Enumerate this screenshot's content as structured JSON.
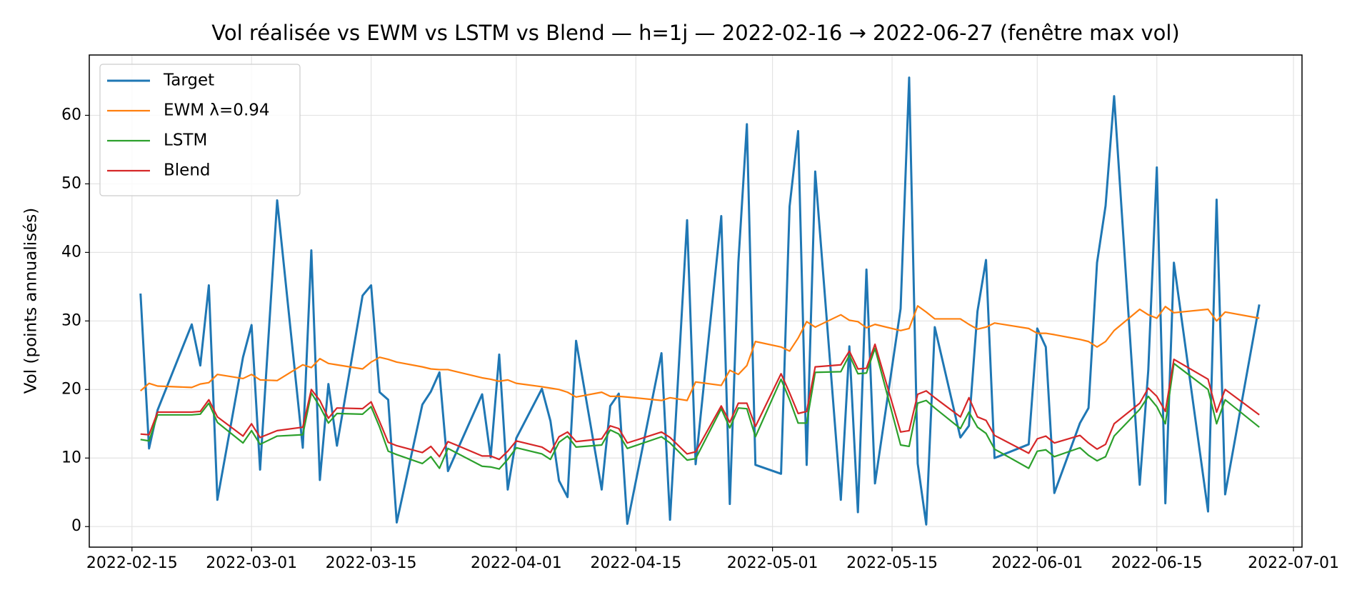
{
  "chart_data": {
    "type": "line",
    "title": "Vol réalisée vs EWM vs LSTM vs Blend — h=1j — 2022-02-16 → 2022-06-27 (fenêtre max vol)",
    "ylabel": "Vol (points annualisés)",
    "x": [
      "2022-02-16",
      "2022-02-17",
      "2022-02-18",
      "2022-02-22",
      "2022-02-23",
      "2022-02-24",
      "2022-02-25",
      "2022-02-28",
      "2022-03-01",
      "2022-03-02",
      "2022-03-04",
      "2022-03-07",
      "2022-03-08",
      "2022-03-09",
      "2022-03-10",
      "2022-03-11",
      "2022-03-14",
      "2022-03-15",
      "2022-03-16",
      "2022-03-17",
      "2022-03-18",
      "2022-03-21",
      "2022-03-22",
      "2022-03-23",
      "2022-03-24",
      "2022-03-28",
      "2022-03-29",
      "2022-03-30",
      "2022-03-31",
      "2022-04-01",
      "2022-04-04",
      "2022-04-05",
      "2022-04-06",
      "2022-04-07",
      "2022-04-08",
      "2022-04-11",
      "2022-04-12",
      "2022-04-13",
      "2022-04-14",
      "2022-04-18",
      "2022-04-19",
      "2022-04-21",
      "2022-04-22",
      "2022-04-25",
      "2022-04-26",
      "2022-04-27",
      "2022-04-28",
      "2022-04-29",
      "2022-05-02",
      "2022-05-03",
      "2022-05-04",
      "2022-05-05",
      "2022-05-06",
      "2022-05-09",
      "2022-05-10",
      "2022-05-11",
      "2022-05-12",
      "2022-05-13",
      "2022-05-16",
      "2022-05-17",
      "2022-05-18",
      "2022-05-19",
      "2022-05-20",
      "2022-05-23",
      "2022-05-24",
      "2022-05-25",
      "2022-05-26",
      "2022-05-27",
      "2022-05-31",
      "2022-06-01",
      "2022-06-02",
      "2022-06-03",
      "2022-06-06",
      "2022-06-07",
      "2022-06-08",
      "2022-06-09",
      "2022-06-10",
      "2022-06-13",
      "2022-06-14",
      "2022-06-15",
      "2022-06-16",
      "2022-06-17",
      "2022-06-21",
      "2022-06-22",
      "2022-06-23",
      "2022-06-27"
    ],
    "series": [
      {
        "name": "Target",
        "color": "#1f77b4",
        "values": [
          34.0,
          11.4,
          17.0,
          29.5,
          23.5,
          35.2,
          3.9,
          24.7,
          29.4,
          8.3,
          47.6,
          11.5,
          40.3,
          6.8,
          20.8,
          11.8,
          33.7,
          35.2,
          19.6,
          18.5,
          0.6,
          17.8,
          19.7,
          22.5,
          8.1,
          19.3,
          10.1,
          25.1,
          5.4,
          12.9,
          20.1,
          15.4,
          6.7,
          4.3,
          27.1,
          5.4,
          17.6,
          19.4,
          0.4,
          25.3,
          1.0,
          44.7,
          9.1,
          45.3,
          3.3,
          38.5,
          58.7,
          9.0,
          7.7,
          46.7,
          57.7,
          9.0,
          51.8,
          3.9,
          26.3,
          2.1,
          37.5,
          6.3,
          31.8,
          65.5,
          9.2,
          0.3,
          29.1,
          13.0,
          14.7,
          31.4,
          38.9,
          10.0,
          12.0,
          28.9,
          26.2,
          4.9,
          15.1,
          17.3,
          38.5,
          46.8,
          62.8,
          6.1,
          22.8,
          52.4,
          3.4,
          38.5,
          2.2,
          47.7,
          4.7,
          32.4
        ]
      },
      {
        "name": "EWM λ=0.94",
        "color": "#ff7f0e",
        "values": [
          19.8,
          20.9,
          20.5,
          20.3,
          20.8,
          21.0,
          22.2,
          21.6,
          22.2,
          21.4,
          21.3,
          23.6,
          23.2,
          24.5,
          23.8,
          23.6,
          23.0,
          24.0,
          24.7,
          24.4,
          24.0,
          23.3,
          23.0,
          22.9,
          22.9,
          21.7,
          21.5,
          21.2,
          21.4,
          20.9,
          20.4,
          20.2,
          20.0,
          19.6,
          18.9,
          19.6,
          19.0,
          19.0,
          18.9,
          18.4,
          18.8,
          18.4,
          21.1,
          20.6,
          22.8,
          22.2,
          23.5,
          27.0,
          26.2,
          25.6,
          27.5,
          29.9,
          29.1,
          30.9,
          30.1,
          29.9,
          29.0,
          29.5,
          28.6,
          28.9,
          32.2,
          31.3,
          30.3,
          30.3,
          29.5,
          28.8,
          29.1,
          29.7,
          28.9,
          28.2,
          28.2,
          28.0,
          27.3,
          27.0,
          26.2,
          27.0,
          28.6,
          31.7,
          30.9,
          30.4,
          32.1,
          31.2,
          31.7,
          30.0,
          31.3,
          30.4
        ]
      },
      {
        "name": "LSTM",
        "color": "#2ca02c",
        "values": [
          12.7,
          12.5,
          16.3,
          16.3,
          16.4,
          18.0,
          15.2,
          12.2,
          14.0,
          12.0,
          13.2,
          13.4,
          19.5,
          17.5,
          15.1,
          16.5,
          16.4,
          17.5,
          14.5,
          11.0,
          10.5,
          9.2,
          10.2,
          8.5,
          11.4,
          8.8,
          8.7,
          8.4,
          9.8,
          11.5,
          10.6,
          9.8,
          12.3,
          13.2,
          11.6,
          11.9,
          14.1,
          13.5,
          11.4,
          13.1,
          12.2,
          9.7,
          9.9,
          17.2,
          14.4,
          17.3,
          17.2,
          13.1,
          21.5,
          18.5,
          15.1,
          15.1,
          22.5,
          22.6,
          25.0,
          22.3,
          22.4,
          26.0,
          11.9,
          11.7,
          18.0,
          18.4,
          17.3,
          14.3,
          16.7,
          14.5,
          13.6,
          11.3,
          8.5,
          11.0,
          11.2,
          10.2,
          11.5,
          10.4,
          9.6,
          10.2,
          13.2,
          17.1,
          19.0,
          17.5,
          15.0,
          23.8,
          20.0,
          15.0,
          18.5,
          14.5
        ]
      },
      {
        "name": "Blend",
        "color": "#d62728",
        "values": [
          13.5,
          13.4,
          16.7,
          16.7,
          16.8,
          18.5,
          16.0,
          13.2,
          15.0,
          13.0,
          14.0,
          14.5,
          20.0,
          18.4,
          15.8,
          17.3,
          17.2,
          18.2,
          15.3,
          12.3,
          11.8,
          10.8,
          11.7,
          10.2,
          12.4,
          10.3,
          10.3,
          9.8,
          11.0,
          12.5,
          11.6,
          10.8,
          13.1,
          13.8,
          12.4,
          12.8,
          14.7,
          14.3,
          12.2,
          13.8,
          13.0,
          10.6,
          10.9,
          17.6,
          15.2,
          18.0,
          18.0,
          14.6,
          22.3,
          19.5,
          16.5,
          16.8,
          23.3,
          23.6,
          25.6,
          23.0,
          23.1,
          26.6,
          13.8,
          14.0,
          19.3,
          19.8,
          18.8,
          16.0,
          18.8,
          16.0,
          15.5,
          13.3,
          10.7,
          12.8,
          13.2,
          12.2,
          13.3,
          12.2,
          11.3,
          12.0,
          15.0,
          18.0,
          20.2,
          19.0,
          16.8,
          24.4,
          21.5,
          16.7,
          20.0,
          16.3
        ]
      }
    ],
    "xlim": [
      "2022-02-10",
      "2022-07-02"
    ],
    "xticks": [
      "2022-02-15",
      "2022-03-01",
      "2022-03-15",
      "2022-04-01",
      "2022-04-15",
      "2022-05-01",
      "2022-05-15",
      "2022-06-01",
      "2022-06-15",
      "2022-07-01"
    ],
    "ylim": [
      -3.0,
      68.8
    ],
    "yticks": [
      0,
      10,
      20,
      30,
      40,
      50,
      60
    ],
    "grid": true,
    "legend": "upper left"
  }
}
